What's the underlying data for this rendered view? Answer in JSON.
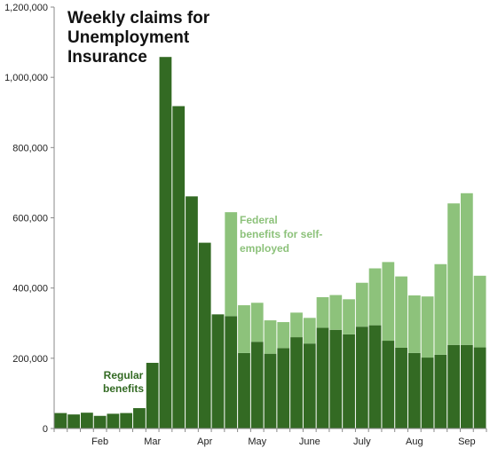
{
  "chart_data": {
    "type": "bar",
    "stacked": true,
    "title_lines": [
      "Weekly claims for",
      "Unemployment",
      "Insurance"
    ],
    "ylim": [
      0,
      1200000
    ],
    "yticks": [
      0,
      200000,
      400000,
      600000,
      800000,
      1000000,
      1200000
    ],
    "ytick_labels": [
      "0",
      "200,000",
      "400,000",
      "600,000",
      "800,000",
      "1,000,000",
      "1,200,000"
    ],
    "x_month_labels": [
      {
        "label": "Feb",
        "bar_index": 3.5
      },
      {
        "label": "Mar",
        "bar_index": 7.5
      },
      {
        "label": "Apr",
        "bar_index": 11.5
      },
      {
        "label": "May",
        "bar_index": 15.5
      },
      {
        "label": "June",
        "bar_index": 19.5
      },
      {
        "label": "July",
        "bar_index": 23.5
      },
      {
        "label": "Aug",
        "bar_index": 27.5
      },
      {
        "label": "Sep",
        "bar_index": 31.5
      }
    ],
    "series": [
      {
        "name": "Regular benefits",
        "color": "#336a23",
        "values": [
          44000,
          40000,
          45000,
          36000,
          42000,
          44000,
          58000,
          187000,
          1058000,
          918000,
          661000,
          529000,
          325000,
          320000,
          215000,
          247000,
          213000,
          229000,
          260000,
          242000,
          287000,
          281000,
          268000,
          290000,
          294000,
          250000,
          230000,
          215000,
          202000,
          210000,
          238000,
          238000,
          231000
        ]
      },
      {
        "name": "Federal benefits for self-employed",
        "color": "#8dc27b",
        "values": [
          0,
          0,
          0,
          0,
          0,
          0,
          0,
          0,
          0,
          0,
          0,
          0,
          0,
          296000,
          136000,
          111000,
          95000,
          74000,
          70000,
          73000,
          87000,
          99000,
          100000,
          125000,
          162000,
          224000,
          203000,
          164000,
          174000,
          258000,
          403000,
          432000,
          204000
        ]
      }
    ],
    "annotations": [
      {
        "lines": [
          "Regular",
          "benefits"
        ],
        "series": "Regular benefits"
      },
      {
        "lines": [
          "Federal",
          "benefits for self-",
          "employed"
        ],
        "series": "Federal benefits for self-employed"
      }
    ]
  }
}
